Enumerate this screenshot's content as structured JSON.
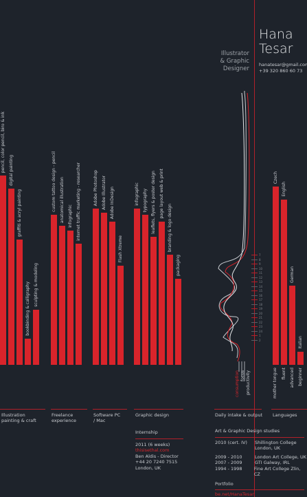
{
  "header": {
    "first_name": "Hana",
    "last_name": "Tesar",
    "role": [
      "Illustrator",
      "& Graphic",
      "Designer"
    ],
    "email": "hanatesar@gmail.com",
    "phone": "+39 320 860 60 73"
  },
  "skills": {
    "groups": [
      {
        "name": "Illustration painting & craft",
        "items": [
          {
            "label": "pencil, color pencil, biro & ink",
            "value": 0.86
          },
          {
            "label": "digital painting",
            "value": 0.8
          },
          {
            "label": "graffiti & acryl painting",
            "value": 0.57
          },
          {
            "label": "bookbinding & calligraphy",
            "value": 0.12
          },
          {
            "label": "sculpting & modeling",
            "value": 0.25
          }
        ]
      },
      {
        "name": "Freelance experience",
        "items": [
          {
            "label": "custom tattoo design - pencil",
            "value": 0.68
          },
          {
            "label": "anatomical illustration",
            "value": 0.63
          },
          {
            "label": "infographic",
            "value": 0.61
          },
          {
            "label": "internet traffic marketing - researcher",
            "value": 0.55
          }
        ]
      },
      {
        "name": "Software PC / Mac",
        "items": [
          {
            "label": "Adobe Photoshop",
            "value": 0.71
          },
          {
            "label": "Adobe Illustrator",
            "value": 0.69
          },
          {
            "label": "Adobe InDesign",
            "value": 0.65
          },
          {
            "label": "Flash Xtreme",
            "value": 0.45
          }
        ]
      },
      {
        "name": "Graphic design",
        "items": [
          {
            "label": "infographic",
            "value": 0.71
          },
          {
            "label": "typography",
            "value": 0.68
          },
          {
            "label": "leaflets, flyers & poster design",
            "value": 0.58
          },
          {
            "label": "page layout web & print",
            "value": 0.65
          },
          {
            "label": "branding & logo design",
            "value": 0.5
          },
          {
            "label": "packaging",
            "value": 0.39
          }
        ]
      },
      {
        "name": "Languages",
        "items": [
          {
            "label": "Czech",
            "value": 0.81
          },
          {
            "label": "English",
            "value": 0.75
          },
          {
            "label": "German",
            "value": 0.36
          },
          {
            "label": "Italian",
            "value": 0.06
          }
        ]
      }
    ],
    "daily_title": "Daily intake & output",
    "daily_legend": [
      "consumption",
      "focus",
      "productivity"
    ],
    "daily_hours": [
      "7",
      "8",
      "9",
      "10",
      "11",
      "12",
      "13",
      "14",
      "15",
      "16",
      "17",
      "18",
      "19",
      "20",
      "21",
      "22",
      "23",
      "24",
      "1",
      "2"
    ],
    "language_levels": [
      "mother tongue",
      "fluent",
      "advanced",
      "beginner"
    ]
  },
  "internship": {
    "title": "Internship",
    "year": "2011 (6 weeks)",
    "company": "thisisethal.com",
    "mentor": "Ben Aldis - Director",
    "phone": "+44 20 7240 7515",
    "city": "London, UK"
  },
  "studies": {
    "title": "Art & Graphic Design studies",
    "rows": [
      {
        "year": "2010 (cert. IV)",
        "place": "Shillington College"
      },
      {
        "year": "",
        "place": "London, UK"
      },
      {
        "year": "2009 - 2010",
        "place": "London Art College, UK"
      },
      {
        "year": "2007 - 2009",
        "place": "GTI Galway, IRL"
      },
      {
        "year": "1994 - 1998",
        "place": "Fine Art College Zlin, CZ"
      }
    ]
  },
  "portfolio": {
    "title": "Portfolio",
    "link": "be.net/HanaTesar"
  },
  "colors": {
    "background": "#1e232b",
    "accent": "#d9242b",
    "text": "#c9ccd1"
  }
}
